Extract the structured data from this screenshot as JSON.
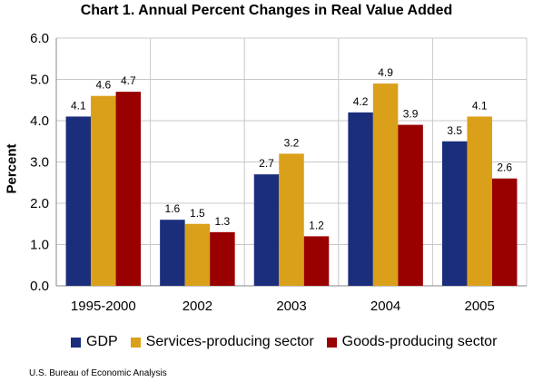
{
  "chart_data": {
    "type": "bar",
    "title": "Chart 1. Annual Percent Changes in Real Value Added",
    "ylabel": "Percent",
    "xlabel": "",
    "ylim": [
      0,
      6
    ],
    "yticks": [
      "0.0",
      "1.0",
      "2.0",
      "3.0",
      "4.0",
      "5.0",
      "6.0"
    ],
    "grid": true,
    "legend_position": "bottom",
    "categories": [
      "1995-2000",
      "2002",
      "2003",
      "2004",
      "2005"
    ],
    "series": [
      {
        "name": "GDP",
        "color": "#1a2e7c",
        "values": [
          4.1,
          1.6,
          2.7,
          4.2,
          3.5
        ]
      },
      {
        "name": "Services-producing sector",
        "color": "#dba019",
        "values": [
          4.6,
          1.5,
          3.2,
          4.9,
          4.1
        ]
      },
      {
        "name": "Goods-producing sector",
        "color": "#990000",
        "values": [
          4.7,
          1.3,
          1.2,
          3.9,
          2.6
        ]
      }
    ]
  },
  "source": "U.S. Bureau of Economic Analysis"
}
